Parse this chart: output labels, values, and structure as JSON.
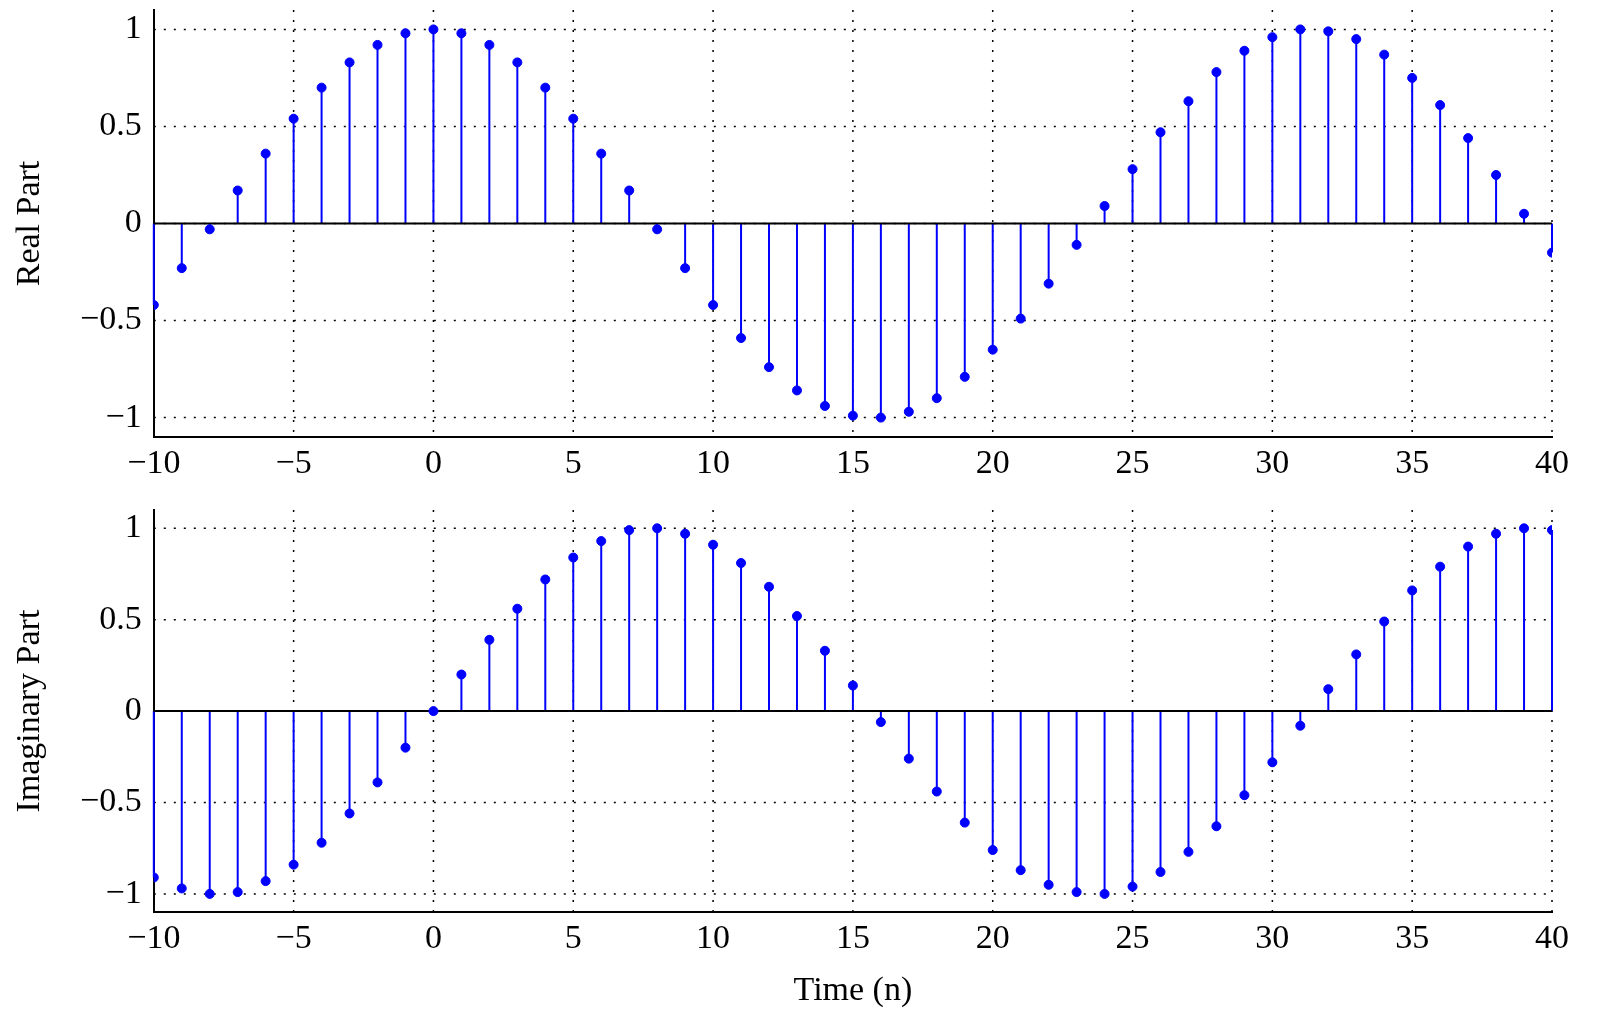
{
  "chart_data": [
    {
      "type": "lollipop",
      "ylabel": "Real Part",
      "x": [
        -10,
        -9,
        -8,
        -7,
        -6,
        -5,
        -4,
        -3,
        -2,
        -1,
        0,
        1,
        2,
        3,
        4,
        5,
        6,
        7,
        8,
        9,
        10,
        11,
        12,
        13,
        14,
        15,
        16,
        17,
        18,
        19,
        20,
        21,
        22,
        23,
        24,
        25,
        26,
        27,
        28,
        29,
        30,
        31,
        32,
        33,
        34,
        35,
        36,
        37,
        38,
        39,
        40
      ],
      "series": [
        {
          "color": "#0000ff",
          "values": [
            -0.42,
            -0.23,
            -0.03,
            0.17,
            0.36,
            0.54,
            0.7,
            0.83,
            0.92,
            0.98,
            1.0,
            0.98,
            0.92,
            0.83,
            0.7,
            0.54,
            0.36,
            0.17,
            -0.03,
            -0.23,
            -0.42,
            -0.59,
            -0.74,
            -0.86,
            -0.94,
            -0.99,
            -1.0,
            -0.97,
            -0.9,
            -0.79,
            -0.65,
            -0.49,
            -0.31,
            -0.11,
            0.09,
            0.28,
            0.47,
            0.63,
            0.78,
            0.89,
            0.96,
            1.0,
            0.99,
            0.95,
            0.87,
            0.75,
            0.61,
            0.44,
            0.25,
            0.05,
            -0.15
          ]
        }
      ],
      "xlim": [
        -10,
        40
      ],
      "xticks": [
        -10,
        -5,
        0,
        5,
        10,
        15,
        20,
        25,
        30,
        35,
        40
      ],
      "ylim": [
        -1.1,
        1.1
      ],
      "yticks": [
        -1,
        -0.5,
        0,
        0.5,
        1
      ],
      "grid": true,
      "marker": "circle",
      "line_style": "dotted"
    },
    {
      "type": "lollipop",
      "ylabel": "Imaginary Part",
      "xlabel": "Time (n)",
      "x": [
        -10,
        -9,
        -8,
        -7,
        -6,
        -5,
        -4,
        -3,
        -2,
        -1,
        0,
        1,
        2,
        3,
        4,
        5,
        6,
        7,
        8,
        9,
        10,
        11,
        12,
        13,
        14,
        15,
        16,
        17,
        18,
        19,
        20,
        21,
        22,
        23,
        24,
        25,
        26,
        27,
        28,
        29,
        30,
        31,
        32,
        33,
        34,
        35,
        36,
        37,
        38,
        39,
        40
      ],
      "series": [
        {
          "color": "#0000ff",
          "values": [
            -0.91,
            -0.97,
            -1.0,
            -0.99,
            -0.93,
            -0.84,
            -0.72,
            -0.56,
            -0.39,
            -0.2,
            0,
            0.2,
            0.39,
            0.56,
            0.72,
            0.84,
            0.93,
            0.99,
            1.0,
            0.97,
            0.91,
            0.81,
            0.68,
            0.52,
            0.33,
            0.14,
            -0.06,
            -0.26,
            -0.44,
            -0.61,
            -0.76,
            -0.87,
            -0.95,
            -0.99,
            -1.0,
            -0.96,
            -0.88,
            -0.77,
            -0.63,
            -0.46,
            -0.28,
            -0.08,
            0.12,
            0.31,
            0.49,
            0.66,
            0.79,
            0.9,
            0.97,
            1.0,
            0.99
          ]
        }
      ],
      "xlim": [
        -10,
        40
      ],
      "xticks": [
        -10,
        -5,
        0,
        5,
        10,
        15,
        20,
        25,
        30,
        35,
        40
      ],
      "ylim": [
        -1.1,
        1.1
      ],
      "yticks": [
        -1,
        -0.5,
        0,
        0.5,
        1
      ],
      "grid": true,
      "marker": "circle",
      "line_style": "dotted"
    }
  ]
}
